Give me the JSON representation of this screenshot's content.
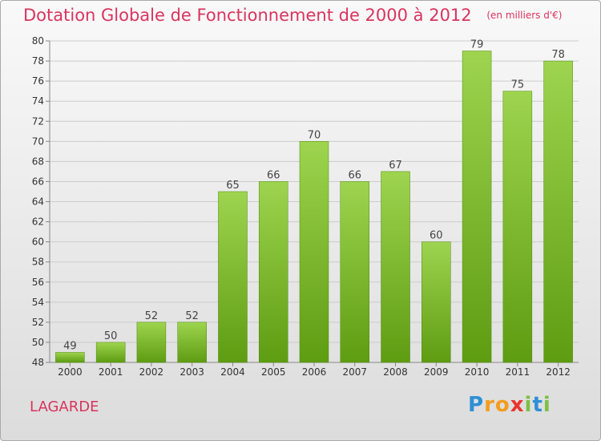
{
  "header": {
    "title": "Dotation Globale de Fonctionnement de 2000 à 2012",
    "unit": "(en milliers d'€)"
  },
  "commune": "LAGARDE",
  "brand": {
    "name": "Proxiti",
    "letters": [
      {
        "char": "P",
        "color": "#2e8fd6"
      },
      {
        "char": "r",
        "color": "#f39c1e"
      },
      {
        "char": "o",
        "color": "#f39c1e"
      },
      {
        "char": "x",
        "color": "#e8352e"
      },
      {
        "char": "i",
        "color": "#7cc142"
      },
      {
        "char": "t",
        "color": "#2e8fd6"
      },
      {
        "char": "i",
        "color": "#7cc142"
      }
    ]
  },
  "colors": {
    "title": "#d9345f",
    "bar_light": "#9ed44f",
    "bar_dark": "#5e9c12",
    "grid": "#cccccc"
  },
  "chart_data": {
    "type": "bar",
    "title": "Dotation Globale de Fonctionnement de 2000 à 2012",
    "subtitle": "(en milliers d'€)",
    "xlabel": "",
    "ylabel": "",
    "categories": [
      "2000",
      "2001",
      "2002",
      "2003",
      "2004",
      "2005",
      "2006",
      "2007",
      "2008",
      "2009",
      "2010",
      "2011",
      "2012"
    ],
    "values": [
      49,
      50,
      52,
      52,
      65,
      66,
      70,
      66,
      67,
      60,
      79,
      75,
      78
    ],
    "ylim": [
      48,
      80
    ],
    "yticks": [
      48,
      50,
      52,
      54,
      56,
      58,
      60,
      62,
      64,
      66,
      68,
      70,
      72,
      74,
      76,
      78,
      80
    ],
    "grid": true,
    "data_labels": true
  }
}
